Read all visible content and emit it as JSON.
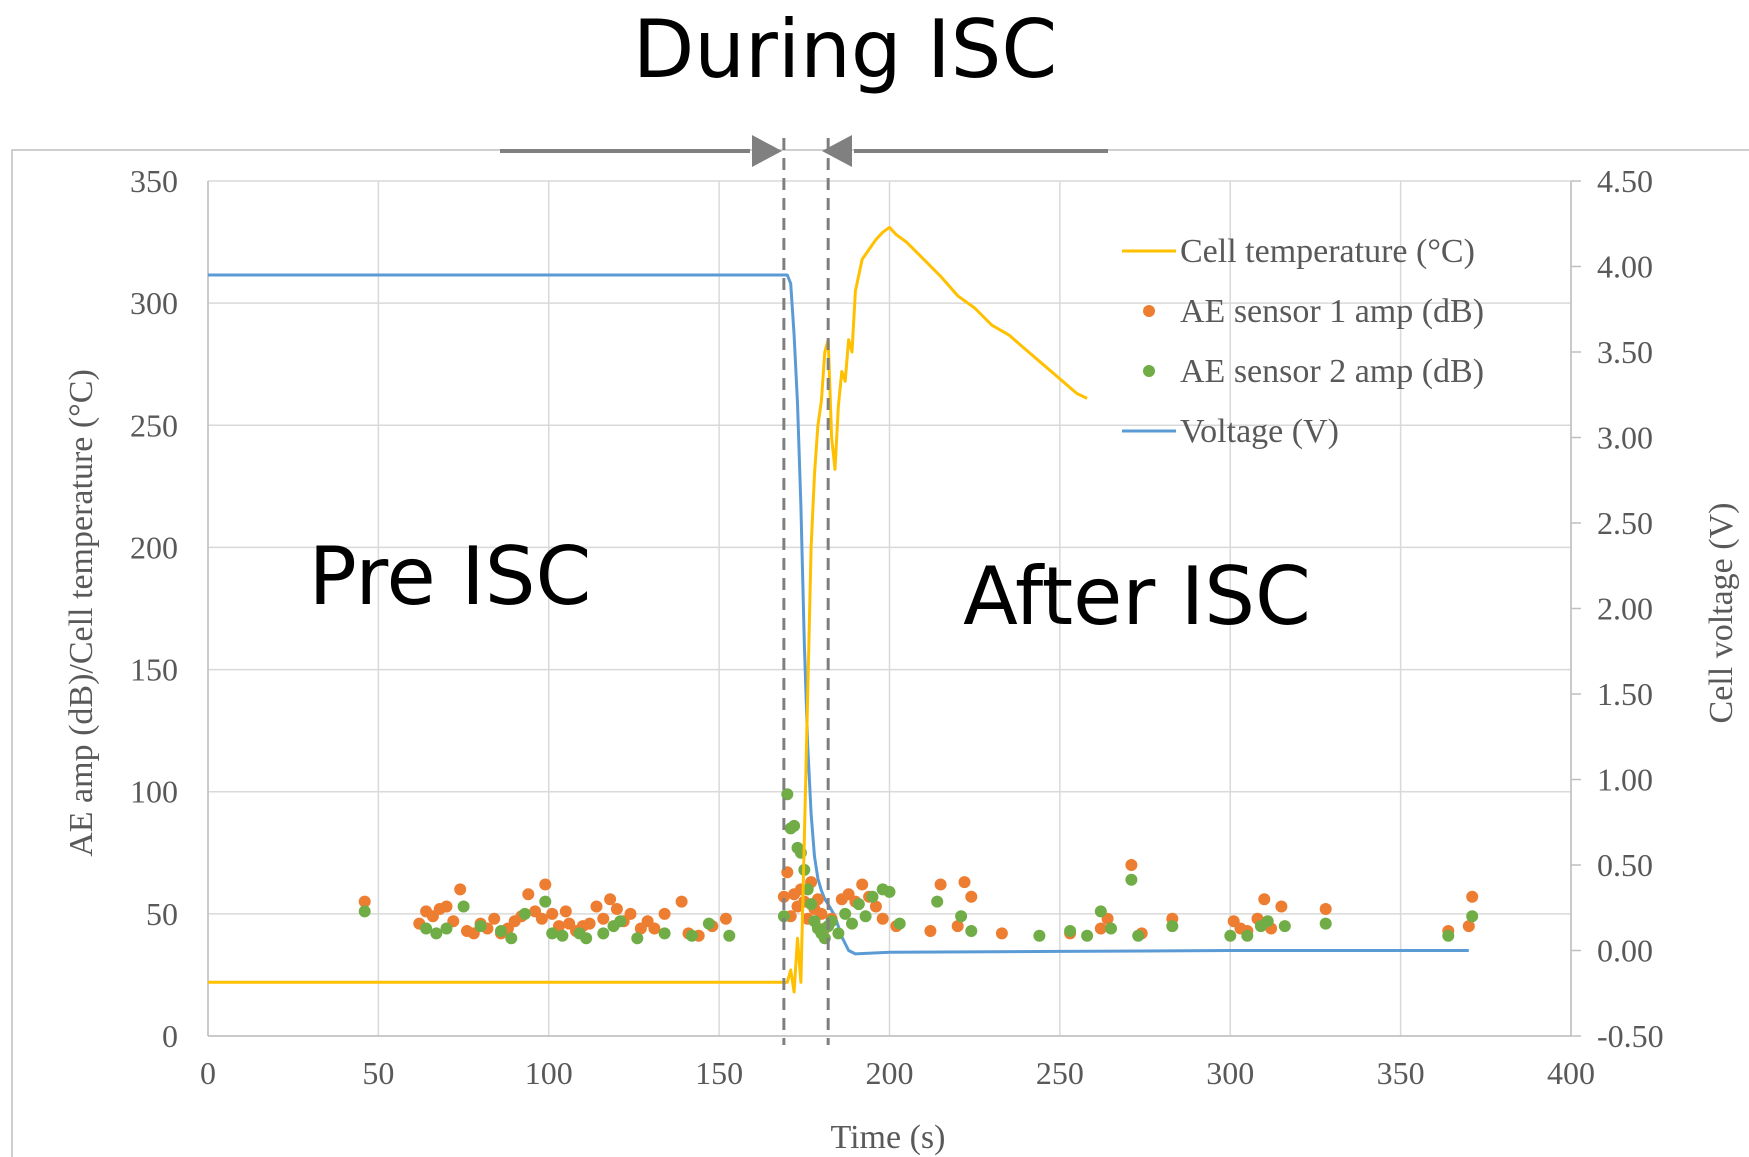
{
  "annotations": {
    "during": "During ISC",
    "pre": "Pre ISC",
    "after": "After ISC"
  },
  "chart_data": {
    "type": "scatter",
    "xlabel": "Time (s)",
    "ylabel": "AE amp (dB)/Cell temperature (°C)",
    "y2label": "Cell voltage (V)",
    "xlim": [
      0,
      400
    ],
    "ylim": [
      0,
      350
    ],
    "y2lim": [
      -0.5,
      4.5
    ],
    "xticks": [
      "0",
      "50",
      "100",
      "150",
      "200",
      "250",
      "300",
      "350",
      "400"
    ],
    "yticks": [
      "0",
      "50",
      "100",
      "150",
      "200",
      "250",
      "300",
      "350"
    ],
    "y2ticks": [
      "-0.50",
      "0.00",
      "0.50",
      "1.00",
      "1.50",
      "2.00",
      "2.50",
      "3.00",
      "3.50",
      "4.00",
      "4.50"
    ],
    "grid": true,
    "legend_position": "top-right",
    "isc_markers": [
      169,
      182
    ],
    "colors": {
      "temperature": "#FFC000",
      "ae1": "#ED7D31",
      "ae2": "#70AD47",
      "voltage": "#5B9BD5",
      "grid": "#D9D9D9",
      "axis_text": "#595959",
      "dashed": "#7F7F7F",
      "arrow": "#808080"
    },
    "series": [
      {
        "name": "Cell temperature (°C)",
        "type": "line",
        "axis": "left",
        "points": [
          [
            0,
            22
          ],
          [
            168,
            22
          ],
          [
            170,
            22
          ],
          [
            171,
            27
          ],
          [
            172,
            18
          ],
          [
            173,
            40
          ],
          [
            174,
            22
          ],
          [
            175,
            80
          ],
          [
            176,
            140
          ],
          [
            177,
            200
          ],
          [
            178,
            230
          ],
          [
            179,
            250
          ],
          [
            180,
            260
          ],
          [
            181,
            280
          ],
          [
            182,
            285
          ],
          [
            183,
            245
          ],
          [
            184,
            232
          ],
          [
            185,
            258
          ],
          [
            186,
            272
          ],
          [
            187,
            268
          ],
          [
            188,
            285
          ],
          [
            189,
            280
          ],
          [
            190,
            305
          ],
          [
            192,
            318
          ],
          [
            194,
            322
          ],
          [
            196,
            326
          ],
          [
            198,
            329
          ],
          [
            200,
            331
          ],
          [
            202,
            328
          ],
          [
            205,
            325
          ],
          [
            210,
            318
          ],
          [
            215,
            311
          ],
          [
            220,
            303
          ],
          [
            225,
            298
          ],
          [
            230,
            291
          ],
          [
            235,
            287
          ],
          [
            240,
            281
          ],
          [
            245,
            275
          ],
          [
            250,
            269
          ],
          [
            255,
            263
          ],
          [
            258,
            261
          ]
        ]
      },
      {
        "name": "AE sensor 1 amp (dB)",
        "type": "scatter",
        "axis": "left",
        "points": [
          [
            46,
            55
          ],
          [
            62,
            46
          ],
          [
            64,
            51
          ],
          [
            66,
            49
          ],
          [
            68,
            52
          ],
          [
            70,
            53
          ],
          [
            72,
            47
          ],
          [
            74,
            60
          ],
          [
            76,
            43
          ],
          [
            78,
            42
          ],
          [
            80,
            46
          ],
          [
            82,
            44
          ],
          [
            84,
            48
          ],
          [
            86,
            42
          ],
          [
            88,
            44
          ],
          [
            90,
            47
          ],
          [
            92,
            49
          ],
          [
            94,
            58
          ],
          [
            96,
            51
          ],
          [
            98,
            48
          ],
          [
            99,
            62
          ],
          [
            101,
            50
          ],
          [
            103,
            45
          ],
          [
            105,
            51
          ],
          [
            106,
            46
          ],
          [
            108,
            43
          ],
          [
            110,
            45
          ],
          [
            112,
            46
          ],
          [
            114,
            53
          ],
          [
            116,
            48
          ],
          [
            118,
            56
          ],
          [
            120,
            52
          ],
          [
            122,
            47
          ],
          [
            124,
            50
          ],
          [
            127,
            44
          ],
          [
            129,
            47
          ],
          [
            131,
            44
          ],
          [
            134,
            50
          ],
          [
            139,
            55
          ],
          [
            141,
            42
          ],
          [
            144,
            41
          ],
          [
            148,
            45
          ],
          [
            152,
            48
          ],
          [
            169,
            57
          ],
          [
            170,
            67
          ],
          [
            171,
            49
          ],
          [
            172,
            58
          ],
          [
            173,
            53
          ],
          [
            174,
            60
          ],
          [
            175,
            55
          ],
          [
            176,
            48
          ],
          [
            177,
            63
          ],
          [
            178,
            52
          ],
          [
            179,
            56
          ],
          [
            180,
            50
          ],
          [
            181,
            44
          ],
          [
            183,
            48
          ],
          [
            186,
            56
          ],
          [
            188,
            58
          ],
          [
            190,
            55
          ],
          [
            192,
            62
          ],
          [
            194,
            57
          ],
          [
            196,
            53
          ],
          [
            198,
            48
          ],
          [
            202,
            45
          ],
          [
            212,
            43
          ],
          [
            215,
            62
          ],
          [
            220,
            45
          ],
          [
            222,
            63
          ],
          [
            224,
            57
          ],
          [
            233,
            42
          ],
          [
            253,
            42
          ],
          [
            262,
            44
          ],
          [
            264,
            48
          ],
          [
            271,
            70
          ],
          [
            274,
            42
          ],
          [
            283,
            48
          ],
          [
            301,
            47
          ],
          [
            303,
            44
          ],
          [
            305,
            43
          ],
          [
            308,
            48
          ],
          [
            310,
            56
          ],
          [
            312,
            44
          ],
          [
            315,
            53
          ],
          [
            328,
            52
          ],
          [
            364,
            43
          ],
          [
            370,
            45
          ],
          [
            371,
            57
          ]
        ]
      },
      {
        "name": "AE sensor 2 amp (dB)",
        "type": "scatter",
        "axis": "left",
        "points": [
          [
            46,
            51
          ],
          [
            64,
            44
          ],
          [
            67,
            42
          ],
          [
            70,
            44
          ],
          [
            75,
            53
          ],
          [
            80,
            45
          ],
          [
            86,
            43
          ],
          [
            89,
            40
          ],
          [
            93,
            50
          ],
          [
            99,
            55
          ],
          [
            101,
            42
          ],
          [
            104,
            41
          ],
          [
            109,
            42
          ],
          [
            111,
            40
          ],
          [
            116,
            42
          ],
          [
            119,
            45
          ],
          [
            121,
            47
          ],
          [
            126,
            40
          ],
          [
            134,
            42
          ],
          [
            142,
            41
          ],
          [
            147,
            46
          ],
          [
            153,
            41
          ],
          [
            169,
            49
          ],
          [
            170,
            99
          ],
          [
            171,
            85
          ],
          [
            172,
            86
          ],
          [
            173,
            77
          ],
          [
            174,
            75
          ],
          [
            175,
            68
          ],
          [
            176,
            60
          ],
          [
            177,
            54
          ],
          [
            178,
            47
          ],
          [
            179,
            44
          ],
          [
            180,
            42
          ],
          [
            181,
            40
          ],
          [
            182,
            45
          ],
          [
            183,
            47
          ],
          [
            185,
            42
          ],
          [
            187,
            50
          ],
          [
            189,
            46
          ],
          [
            191,
            54
          ],
          [
            193,
            49
          ],
          [
            195,
            57
          ],
          [
            198,
            60
          ],
          [
            200,
            59
          ],
          [
            203,
            46
          ],
          [
            214,
            55
          ],
          [
            221,
            49
          ],
          [
            224,
            43
          ],
          [
            244,
            41
          ],
          [
            253,
            43
          ],
          [
            258,
            41
          ],
          [
            262,
            51
          ],
          [
            265,
            44
          ],
          [
            271,
            64
          ],
          [
            273,
            41
          ],
          [
            283,
            45
          ],
          [
            300,
            41
          ],
          [
            305,
            41
          ],
          [
            309,
            45
          ],
          [
            311,
            47
          ],
          [
            316,
            45
          ],
          [
            328,
            46
          ],
          [
            364,
            41
          ],
          [
            371,
            49
          ]
        ]
      },
      {
        "name": "Voltage (V)",
        "type": "line",
        "axis": "right",
        "points": [
          [
            0,
            3.95
          ],
          [
            170,
            3.95
          ],
          [
            171,
            3.9
          ],
          [
            172,
            3.6
          ],
          [
            173,
            3.2
          ],
          [
            174,
            2.6
          ],
          [
            175,
            1.8
          ],
          [
            176,
            1.2
          ],
          [
            177,
            0.8
          ],
          [
            178,
            0.55
          ],
          [
            179,
            0.42
          ],
          [
            180,
            0.35
          ],
          [
            181,
            0.3
          ],
          [
            182,
            0.27
          ],
          [
            184,
            0.2
          ],
          [
            186,
            0.08
          ],
          [
            188,
            0.0
          ],
          [
            190,
            -0.02
          ],
          [
            200,
            -0.01
          ],
          [
            250,
            -0.005
          ],
          [
            300,
            0.0
          ],
          [
            370,
            0.0
          ]
        ]
      }
    ]
  }
}
